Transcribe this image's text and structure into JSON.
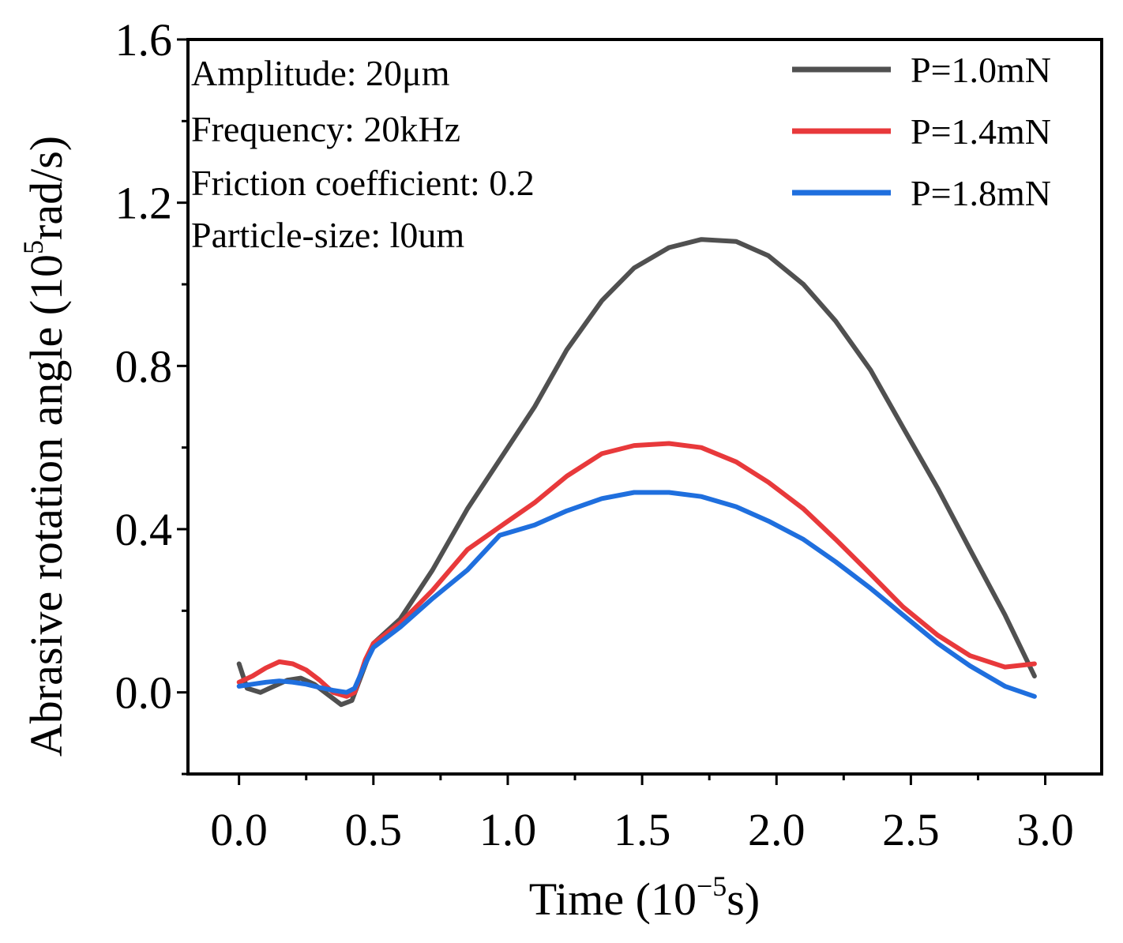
{
  "chart_data": {
    "type": "line",
    "xlabel_main": "Time (10",
    "xlabel_sup": "−5",
    "xlabel_tail": "s)",
    "ylabel_main": "Abrasive rotation angle (10",
    "ylabel_sup": "5",
    "ylabel_tail": "rad/s)",
    "xlim": [
      -0.19,
      3.21
    ],
    "ylim": [
      -0.2,
      1.6
    ],
    "x_ticks": [
      0.0,
      0.5,
      1.0,
      1.5,
      2.0,
      2.5,
      3.0
    ],
    "x_tick_labels": [
      "0.0",
      "0.5",
      "1.0",
      "1.5",
      "2.0",
      "2.5",
      "3.0"
    ],
    "y_ticks": [
      0.0,
      0.4,
      0.8,
      1.2,
      1.6
    ],
    "y_tick_labels": [
      "0.0",
      "0.4",
      "0.8",
      "1.2",
      "1.6"
    ],
    "grid": false,
    "legend_position": "top-right",
    "annotations": [
      "Amplitude: 20μm",
      "Frequency: 20kHz",
      "Friction coefficient: 0.2",
      "Particle-size: l0um"
    ],
    "series": [
      {
        "name": "P=1.0mN",
        "color": "#505050",
        "points": [
          [
            0.0,
            0.07
          ],
          [
            0.03,
            0.01
          ],
          [
            0.08,
            0.0
          ],
          [
            0.13,
            0.015
          ],
          [
            0.18,
            0.03
          ],
          [
            0.23,
            0.035
          ],
          [
            0.28,
            0.02
          ],
          [
            0.33,
            -0.005
          ],
          [
            0.38,
            -0.03
          ],
          [
            0.42,
            -0.02
          ],
          [
            0.46,
            0.05
          ],
          [
            0.5,
            0.12
          ],
          [
            0.6,
            0.18
          ],
          [
            0.72,
            0.3
          ],
          [
            0.85,
            0.45
          ],
          [
            1.0,
            0.6
          ],
          [
            1.1,
            0.7
          ],
          [
            1.22,
            0.84
          ],
          [
            1.35,
            0.96
          ],
          [
            1.47,
            1.04
          ],
          [
            1.6,
            1.09
          ],
          [
            1.72,
            1.11
          ],
          [
            1.85,
            1.105
          ],
          [
            1.97,
            1.07
          ],
          [
            2.1,
            1.0
          ],
          [
            2.22,
            0.91
          ],
          [
            2.35,
            0.79
          ],
          [
            2.47,
            0.65
          ],
          [
            2.6,
            0.5
          ],
          [
            2.72,
            0.35
          ],
          [
            2.85,
            0.19
          ],
          [
            2.96,
            0.04
          ]
        ]
      },
      {
        "name": "P=1.4mN",
        "color": "#e8393b",
        "points": [
          [
            0.0,
            0.025
          ],
          [
            0.05,
            0.04
          ],
          [
            0.1,
            0.06
          ],
          [
            0.15,
            0.075
          ],
          [
            0.2,
            0.07
          ],
          [
            0.25,
            0.055
          ],
          [
            0.3,
            0.03
          ],
          [
            0.35,
            0.0
          ],
          [
            0.4,
            -0.01
          ],
          [
            0.43,
            0.0
          ],
          [
            0.47,
            0.08
          ],
          [
            0.5,
            0.12
          ],
          [
            0.6,
            0.17
          ],
          [
            0.72,
            0.25
          ],
          [
            0.85,
            0.35
          ],
          [
            0.98,
            0.41
          ],
          [
            1.1,
            0.465
          ],
          [
            1.22,
            0.53
          ],
          [
            1.35,
            0.585
          ],
          [
            1.47,
            0.605
          ],
          [
            1.6,
            0.61
          ],
          [
            1.72,
            0.6
          ],
          [
            1.85,
            0.565
          ],
          [
            1.97,
            0.515
          ],
          [
            2.1,
            0.45
          ],
          [
            2.22,
            0.375
          ],
          [
            2.35,
            0.29
          ],
          [
            2.47,
            0.21
          ],
          [
            2.6,
            0.14
          ],
          [
            2.72,
            0.09
          ],
          [
            2.85,
            0.062
          ],
          [
            2.96,
            0.07
          ]
        ]
      },
      {
        "name": "P=1.8mN",
        "color": "#1f6fde",
        "points": [
          [
            0.0,
            0.015
          ],
          [
            0.05,
            0.02
          ],
          [
            0.1,
            0.025
          ],
          [
            0.15,
            0.028
          ],
          [
            0.2,
            0.025
          ],
          [
            0.25,
            0.02
          ],
          [
            0.3,
            0.012
          ],
          [
            0.35,
            0.005
          ],
          [
            0.4,
            0.0
          ],
          [
            0.43,
            0.01
          ],
          [
            0.47,
            0.07
          ],
          [
            0.5,
            0.11
          ],
          [
            0.6,
            0.16
          ],
          [
            0.72,
            0.23
          ],
          [
            0.85,
            0.3
          ],
          [
            0.97,
            0.385
          ],
          [
            1.1,
            0.41
          ],
          [
            1.22,
            0.445
          ],
          [
            1.35,
            0.475
          ],
          [
            1.47,
            0.49
          ],
          [
            1.6,
            0.49
          ],
          [
            1.72,
            0.48
          ],
          [
            1.85,
            0.455
          ],
          [
            1.97,
            0.42
          ],
          [
            2.1,
            0.375
          ],
          [
            2.22,
            0.32
          ],
          [
            2.35,
            0.255
          ],
          [
            2.47,
            0.19
          ],
          [
            2.6,
            0.12
          ],
          [
            2.72,
            0.065
          ],
          [
            2.85,
            0.015
          ],
          [
            2.96,
            -0.01
          ]
        ]
      }
    ]
  }
}
